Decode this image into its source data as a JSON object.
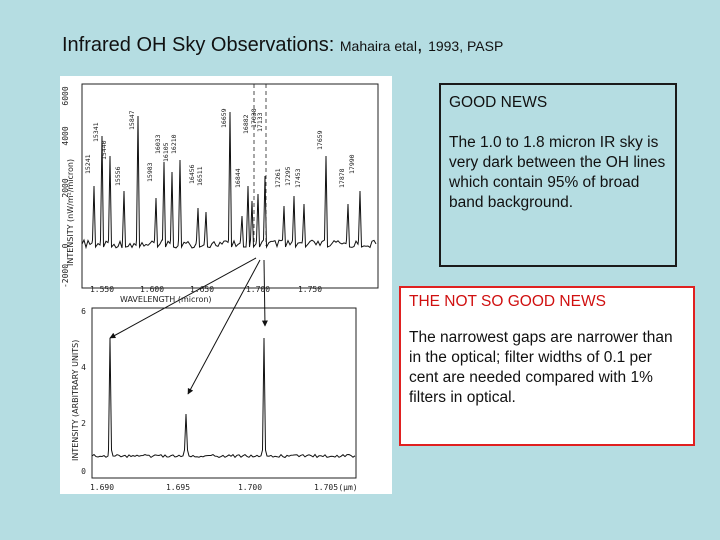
{
  "title": {
    "main": "Infrared OH Sky Observations:",
    "reference_authors": "Mahaira etal",
    "reference_sep": ",",
    "reference_rest": "1993, PASP"
  },
  "figure": {
    "top_panel": {
      "ylabel": "INTENSITY (nW/m²/micron)",
      "xlabel": "WAVELENGTH (micron)",
      "x_ticks": [
        "1.550",
        "1.600",
        "1.650",
        "1.700",
        "1.750"
      ],
      "y_ticks": [
        "6000",
        "4000",
        "2000",
        "0",
        "-2000"
      ],
      "line_labels": [
        "15241",
        "15341",
        "15440",
        "15556",
        "15847",
        "15983",
        "16033",
        "16105",
        "16210",
        "16456",
        "16511",
        "16659",
        "16844",
        "16882",
        "17038",
        "17133",
        "17261",
        "17295",
        "17453",
        "17659",
        "17878",
        "17990"
      ]
    },
    "bottom_panel": {
      "ylabel": "INTENSITY (ARBITRARY UNITS)",
      "x_ticks": [
        "1.690",
        "1.695",
        "1.700",
        "1.705"
      ],
      "x_unit": "(μm)",
      "y_ticks": [
        "6",
        "4",
        "2",
        "0"
      ]
    }
  },
  "good_news": {
    "heading": "GOOD NEWS",
    "body": "The 1.0 to 1.8 micron IR sky is  very dark between the OH lines which contain 95% of broad band background."
  },
  "bad_news": {
    "heading": "THE NOT SO GOOD NEWS",
    "body": "The narrowest gaps are narrower than in the optical; filter widths of 0.1 per cent are needed compared with 1% filters in optical."
  }
}
